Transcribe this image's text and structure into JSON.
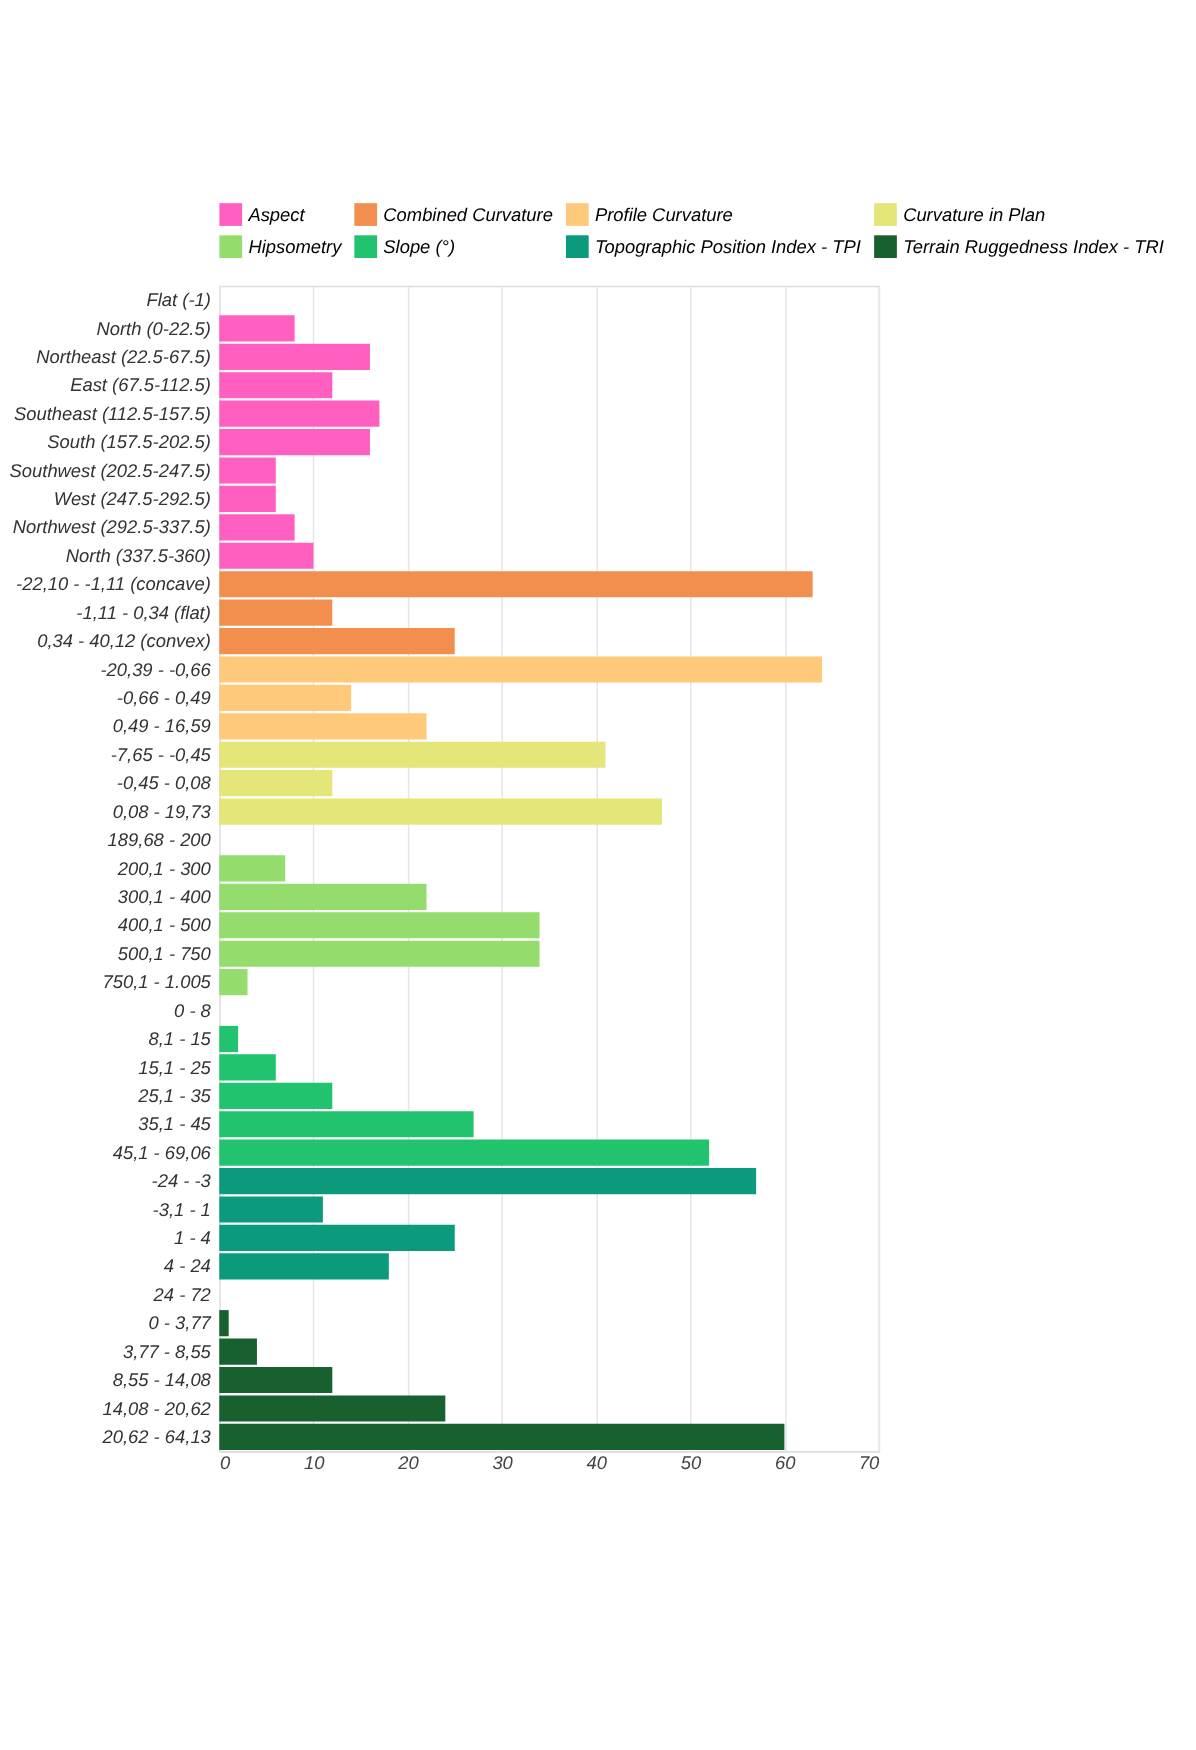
{
  "chart_data": {
    "type": "bar",
    "orientation": "horizontal",
    "categories": [
      "Flat (-1)",
      "North (0-22.5)",
      "Northeast (22.5-67.5)",
      "East (67.5-112.5)",
      "Southeast (112.5-157.5)",
      "South (157.5-202.5)",
      "Southwest (202.5-247.5)",
      "West (247.5-292.5)",
      "Northwest (292.5-337.5)",
      "North (337.5-360)",
      "-22,10 - -1,11 (concave)",
      "-1,11 - 0,34 (flat)",
      "0,34 - 40,12 (convex)",
      "-20,39 - -0,66",
      "-0,66 - 0,49",
      "0,49 - 16,59",
      "-7,65 - -0,45",
      "-0,45 - 0,08",
      "0,08 - 19,73",
      "189,68 - 200",
      "200,1 - 300",
      "300,1 - 400",
      "400,1 - 500",
      "500,1 - 750",
      "750,1 - 1.005",
      "0 - 8",
      "8,1 - 15",
      "15,1 - 25",
      "25,1 - 35",
      "35,1 - 45",
      "45,1 - 69,06",
      "-24 - -3",
      "-3,1 - 1",
      "1 - 4",
      "4 - 24",
      "24 - 72",
      "0 - 3,77",
      "3,77 - 8,55",
      "8,55 - 14,08",
      "14,08 - 20,62",
      "20,62 - 64,13"
    ],
    "series": [
      {
        "name": "Aspect",
        "color": "#ff5fc0",
        "values": [
          null,
          8,
          16,
          12,
          17,
          16,
          6,
          6,
          8,
          10,
          null,
          null,
          null,
          null,
          null,
          null,
          null,
          null,
          null,
          null,
          null,
          null,
          null,
          null,
          null,
          null,
          null,
          null,
          null,
          null,
          null,
          null,
          null,
          null,
          null,
          null,
          null,
          null,
          null,
          null,
          null
        ]
      },
      {
        "name": "Combined Curvature",
        "color": "#f28f4f",
        "values": [
          null,
          null,
          null,
          null,
          null,
          null,
          null,
          null,
          null,
          null,
          63,
          12,
          25,
          null,
          null,
          null,
          null,
          null,
          null,
          null,
          null,
          null,
          null,
          null,
          null,
          null,
          null,
          null,
          null,
          null,
          null,
          null,
          null,
          null,
          null,
          null,
          null,
          null,
          null,
          null,
          null
        ]
      },
      {
        "name": "Profile Curvature",
        "color": "#fec97a",
        "values": [
          null,
          null,
          null,
          null,
          null,
          null,
          null,
          null,
          null,
          null,
          null,
          null,
          null,
          64,
          14,
          22,
          null,
          null,
          null,
          null,
          null,
          null,
          null,
          null,
          null,
          null,
          null,
          null,
          null,
          null,
          null,
          null,
          null,
          null,
          null,
          null,
          null,
          null,
          null,
          null,
          null
        ]
      },
      {
        "name": "Curvature in Plan",
        "color": "#e5e67a",
        "values": [
          null,
          null,
          null,
          null,
          null,
          null,
          null,
          null,
          null,
          null,
          null,
          null,
          null,
          null,
          null,
          null,
          41,
          12,
          47,
          null,
          null,
          null,
          null,
          null,
          null,
          null,
          null,
          null,
          null,
          null,
          null,
          null,
          null,
          null,
          null,
          null,
          null,
          null,
          null,
          null,
          null
        ]
      },
      {
        "name": "Hipsometry",
        "color": "#94dd6c",
        "values": [
          null,
          null,
          null,
          null,
          null,
          null,
          null,
          null,
          null,
          null,
          null,
          null,
          null,
          null,
          null,
          null,
          null,
          null,
          null,
          null,
          7,
          22,
          34,
          34,
          3,
          null,
          null,
          null,
          null,
          null,
          null,
          null,
          null,
          null,
          null,
          null,
          null,
          null,
          null,
          null,
          null
        ]
      },
      {
        "name": "Slope (°)",
        "color": "#21c36e",
        "values": [
          null,
          null,
          null,
          null,
          null,
          null,
          null,
          null,
          null,
          null,
          null,
          null,
          null,
          null,
          null,
          null,
          null,
          null,
          null,
          null,
          null,
          null,
          null,
          null,
          null,
          null,
          2,
          6,
          12,
          27,
          52,
          null,
          null,
          null,
          null,
          null,
          null,
          null,
          null,
          null,
          null
        ]
      },
      {
        "name": "Topographic Position Index - TPI",
        "color": "#0b9a7b",
        "values": [
          null,
          null,
          null,
          null,
          null,
          null,
          null,
          null,
          null,
          null,
          null,
          null,
          null,
          null,
          null,
          null,
          null,
          null,
          null,
          null,
          null,
          null,
          null,
          null,
          null,
          null,
          null,
          null,
          null,
          null,
          null,
          57,
          11,
          25,
          18,
          null,
          null,
          null,
          null,
          null,
          null
        ]
      },
      {
        "name": "Terrain Ruggedness Index - TRI",
        "color": "#18602e",
        "values": [
          null,
          null,
          null,
          null,
          null,
          null,
          null,
          null,
          null,
          null,
          null,
          null,
          null,
          null,
          null,
          null,
          null,
          null,
          null,
          null,
          null,
          null,
          null,
          null,
          null,
          null,
          null,
          null,
          null,
          null,
          null,
          null,
          null,
          null,
          null,
          null,
          1,
          4,
          12,
          24,
          60
        ]
      }
    ],
    "xlim": [
      0,
      70
    ],
    "xticks": [
      0,
      10,
      20,
      30,
      40,
      50,
      60,
      70
    ],
    "grid": "x",
    "legend": "top"
  }
}
